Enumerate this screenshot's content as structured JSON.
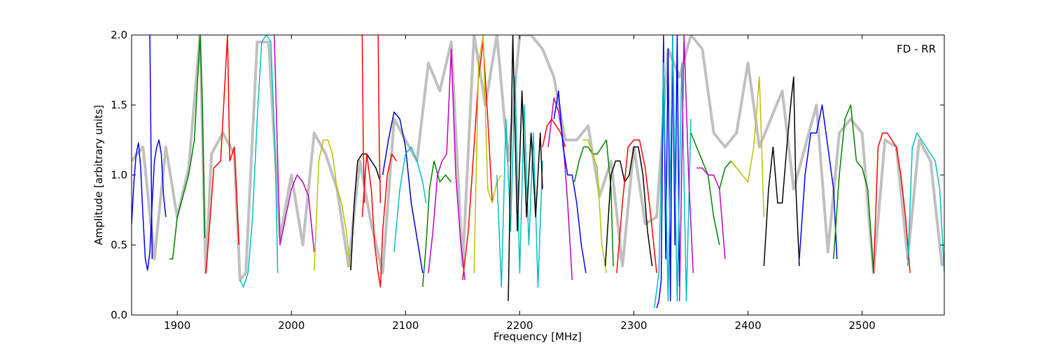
{
  "chart_data": {
    "type": "line",
    "title": "",
    "xlabel": "Frequency [MHz]",
    "ylabel": "Amplitude [arbitrary units]",
    "xlim": [
      1860,
      2572
    ],
    "ylim": [
      0.0,
      2.0
    ],
    "xticks": [
      1900,
      2000,
      2100,
      2200,
      2300,
      2400,
      2500
    ],
    "yticks": [
      0.0,
      0.5,
      1.0,
      1.5,
      2.0
    ],
    "xtick_labels": [
      "1900",
      "2000",
      "2100",
      "2200",
      "2300",
      "2400",
      "2500"
    ],
    "ytick_labels": [
      "0.0",
      "0.5",
      "1.0",
      "1.5",
      "2.0"
    ],
    "grid": false,
    "annotation": "FD - RR",
    "background_color": "#c0c0c0",
    "background_series": {
      "x": [
        1860,
        1870,
        1880,
        1890,
        1900,
        1910,
        1920,
        1925,
        1930,
        1940,
        1950,
        1955,
        1960,
        1970,
        1980,
        1990,
        2000,
        2010,
        2020,
        2030,
        2040,
        2050,
        2060,
        2070,
        2080,
        2090,
        2100,
        2110,
        2120,
        2130,
        2140,
        2150,
        2160,
        2170,
        2180,
        2190,
        2200,
        2210,
        2220,
        2230,
        2240,
        2250,
        2260,
        2270,
        2280,
        2290,
        2300,
        2310,
        2320,
        2330,
        2340,
        2350,
        2360,
        2370,
        2380,
        2390,
        2400,
        2410,
        2420,
        2430,
        2440,
        2450,
        2460,
        2470,
        2480,
        2490,
        2500,
        2510,
        2520,
        2530,
        2540,
        2550,
        2560,
        2570
      ],
      "y": [
        1.1,
        1.2,
        0.4,
        1.2,
        0.7,
        1.05,
        2.0,
        0.3,
        1.15,
        1.3,
        1.15,
        0.25,
        0.3,
        1.95,
        1.95,
        0.55,
        1.0,
        0.5,
        1.3,
        1.15,
        0.9,
        0.35,
        1.1,
        0.65,
        0.3,
        1.4,
        1.25,
        1.1,
        1.8,
        1.6,
        1.95,
        0.35,
        2.0,
        1.5,
        2.0,
        1.1,
        2.0,
        2.0,
        1.9,
        1.7,
        1.25,
        1.25,
        1.35,
        0.85,
        1.1,
        0.35,
        1.2,
        0.65,
        0.7,
        1.9,
        1.7,
        2.0,
        1.9,
        1.3,
        1.2,
        1.3,
        1.8,
        1.2,
        1.4,
        1.6,
        0.9,
        1.2,
        1.5,
        0.45,
        1.3,
        1.4,
        1.3,
        0.3,
        1.25,
        1.2,
        0.4,
        1.25,
        1.1,
        0.35
      ]
    },
    "series": [
      {
        "color": "#0000ff",
        "x": [
          1860,
          1862,
          1864,
          1866,
          1868,
          1870,
          1872,
          1874,
          1876,
          1878,
          1880,
          1882,
          1884,
          1886,
          1888,
          1890
        ],
        "y": [
          0.65,
          0.95,
          1.15,
          1.23,
          1.05,
          0.7,
          0.4,
          0.32,
          0.45,
          0.8,
          1.1,
          1.2,
          1.25,
          1.15,
          0.85,
          0.7
        ]
      },
      {
        "color": "#0000ff",
        "x": [
          1876,
          1877,
          1878
        ],
        "y": [
          2.0,
          1.2,
          0.4
        ]
      },
      {
        "color": "#008000",
        "x": [
          1893,
          1896,
          1900,
          1905,
          1910,
          1915,
          1920,
          1922,
          1924
        ],
        "y": [
          0.4,
          0.4,
          0.7,
          0.85,
          1.0,
          1.25,
          2.0,
          1.5,
          0.55
        ]
      },
      {
        "color": "#ff0000",
        "x": [
          1925,
          1928,
          1932,
          1938,
          1944,
          1946,
          1950,
          1954
        ],
        "y": [
          0.3,
          0.6,
          1.05,
          1.1,
          2.0,
          1.1,
          1.2,
          0.5
        ]
      },
      {
        "color": "#00bfbf",
        "x": [
          1955,
          1958,
          1962,
          1966,
          1970,
          1974,
          1978,
          1982,
          1986,
          1988
        ],
        "y": [
          0.25,
          0.2,
          0.3,
          0.7,
          1.4,
          1.95,
          2.0,
          1.95,
          1.1,
          0.3
        ]
      },
      {
        "color": "#bf00bf",
        "x": [
          1985,
          1990,
          1995,
          2000,
          2005,
          2010,
          2015,
          2020
        ],
        "y": [
          2.0,
          0.5,
          0.7,
          0.9,
          1.0,
          0.95,
          0.85,
          0.45
        ]
      },
      {
        "color": "#bfbf00",
        "x": [
          2020,
          2024,
          2028,
          2032,
          2036,
          2040,
          2044,
          2048,
          2052
        ],
        "y": [
          0.32,
          1.1,
          1.25,
          1.25,
          1.15,
          0.9,
          0.8,
          0.6,
          0.32
        ]
      },
      {
        "color": "#000000",
        "x": [
          2052,
          2055,
          2058,
          2062,
          2066,
          2070,
          2074,
          2078
        ],
        "y": [
          0.32,
          0.8,
          1.1,
          1.15,
          1.15,
          1.1,
          1.05,
          0.95
        ]
      },
      {
        "color": "#ff0000",
        "x": [
          2062,
          2066,
          2070,
          2073,
          2076,
          2078,
          2080,
          2084,
          2088,
          2092
        ],
        "y": [
          0.7,
          1.15,
          0.9,
          0.5,
          0.3,
          0.2,
          0.6,
          1.0,
          1.15,
          1.1
        ]
      },
      {
        "color": "#ff0000",
        "x": [
          2062,
          2063,
          2064
        ],
        "y": [
          2.0,
          1.2,
          0.8
        ]
      },
      {
        "color": "#ff0000",
        "x": [
          2076,
          2077,
          2078
        ],
        "y": [
          2.0,
          1.2,
          0.8
        ]
      },
      {
        "color": "#0000cc",
        "x": [
          2080,
          2085,
          2090,
          2095,
          2100,
          2105,
          2110,
          2115
        ],
        "y": [
          1.0,
          1.25,
          1.45,
          1.4,
          1.2,
          0.8,
          0.55,
          0.3
        ]
      },
      {
        "color": "#00bfbf",
        "x": [
          2090,
          2095,
          2100,
          2105,
          2110,
          2115,
          2118
        ],
        "y": [
          0.45,
          0.9,
          1.15,
          1.2,
          1.1,
          0.95,
          0.8
        ]
      },
      {
        "color": "#008000",
        "x": [
          2115,
          2118,
          2121,
          2125,
          2130,
          2135,
          2140
        ],
        "y": [
          0.2,
          0.5,
          0.9,
          1.1,
          0.95,
          1.0,
          0.95
        ]
      },
      {
        "color": "#bf00bf",
        "x": [
          2120,
          2124,
          2128,
          2132,
          2136,
          2140,
          2144,
          2148,
          2152
        ],
        "y": [
          0.3,
          0.6,
          1.0,
          1.1,
          1.15,
          1.9,
          1.0,
          0.55,
          0.25
        ]
      },
      {
        "color": "#ff0000",
        "x": [
          2150,
          2155,
          2160,
          2164,
          2168,
          2172,
          2176
        ],
        "y": [
          0.25,
          0.6,
          1.2,
          1.7,
          1.95,
          1.4,
          0.8
        ]
      },
      {
        "color": "#bfbf00",
        "x": [
          2160,
          2164,
          2168,
          2172,
          2176,
          2180,
          2184
        ],
        "y": [
          0.3,
          1.8,
          2.0,
          0.9,
          0.8,
          0.95,
          1.0
        ]
      },
      {
        "color": "#00bfbf",
        "x": [
          2180,
          2184,
          2188,
          2192,
          2196,
          2200,
          2204,
          2208,
          2212,
          2216,
          2220
        ],
        "y": [
          1.0,
          0.2,
          1.4,
          0.6,
          1.7,
          0.3,
          1.5,
          0.5,
          1.3,
          0.2,
          1.1
        ]
      },
      {
        "color": "#000000",
        "x": [
          2190,
          2194,
          2198,
          2202,
          2206,
          2210,
          2214,
          2218,
          2220
        ],
        "y": [
          0.1,
          2.0,
          0.6,
          1.6,
          0.7,
          1.3,
          0.7,
          1.3,
          0.9
        ]
      },
      {
        "color": "#ff0000",
        "x": [
          2220,
          2224,
          2228,
          2232,
          2236,
          2240
        ],
        "y": [
          1.2,
          1.35,
          1.4,
          1.35,
          1.3,
          1.2
        ]
      },
      {
        "color": "#bf00bf",
        "x": [
          2225,
          2230,
          2234,
          2238,
          2242,
          2246
        ],
        "y": [
          1.2,
          1.55,
          1.45,
          1.25,
          0.8,
          0.25
        ]
      },
      {
        "color": "#0000ff",
        "x": [
          2230,
          2234,
          2238,
          2242,
          2246,
          2250,
          2254,
          2258
        ],
        "y": [
          1.4,
          1.6,
          1.2,
          1.0,
          1.0,
          0.8,
          0.5,
          0.3
        ]
      },
      {
        "color": "#008000",
        "x": [
          2248,
          2252,
          2256,
          2260,
          2264,
          2268,
          2272,
          2276,
          2280,
          2282
        ],
        "y": [
          0.95,
          1.1,
          1.2,
          1.2,
          1.15,
          1.15,
          1.2,
          1.25,
          0.9,
          0.35
        ]
      },
      {
        "color": "#bfbf00",
        "x": [
          2255,
          2260,
          2264,
          2268,
          2272,
          2276
        ],
        "y": [
          1.25,
          1.25,
          1.15,
          1.05,
          0.5,
          0.3
        ]
      },
      {
        "color": "#000000",
        "x": [
          2275,
          2280,
          2284,
          2288,
          2292,
          2296,
          2300,
          2304,
          2308,
          2312,
          2316
        ],
        "y": [
          0.35,
          1.0,
          1.1,
          1.1,
          0.95,
          1.0,
          1.2,
          1.2,
          1.0,
          0.6,
          0.35
        ]
      },
      {
        "color": "#ff0000",
        "x": [
          2285,
          2290,
          2295,
          2300,
          2305,
          2310,
          2315,
          2320
        ],
        "y": [
          0.3,
          0.8,
          1.2,
          1.25,
          1.25,
          1.05,
          0.7,
          0.3
        ]
      },
      {
        "color": "#0000ff",
        "x": [
          2320,
          2322,
          2324,
          2326,
          2328,
          2330,
          2332,
          2334,
          2336,
          2338,
          2340
        ],
        "y": [
          0.05,
          0.1,
          0.25,
          2.0,
          0.4,
          1.9,
          0.1,
          2.0,
          0.5,
          2.0,
          0.2
        ]
      },
      {
        "color": "#00bfbf",
        "x": [
          2318,
          2322,
          2326,
          2330,
          2334,
          2338,
          2342,
          2346,
          2350
        ],
        "y": [
          0.05,
          0.3,
          1.8,
          0.1,
          2.0,
          0.1,
          1.8,
          0.1,
          1.4
        ]
      },
      {
        "color": "#bf00bf",
        "x": [
          2340,
          2344,
          2348,
          2352
        ],
        "y": [
          0.1,
          2.0,
          1.0,
          0.3
        ]
      },
      {
        "color": "#008000",
        "x": [
          2350,
          2355,
          2360,
          2365,
          2370,
          2375
        ],
        "y": [
          1.3,
          1.2,
          1.1,
          1.0,
          0.7,
          0.5
        ]
      },
      {
        "color": "#bf00bf",
        "x": [
          2355,
          2360,
          2365,
          2370,
          2375,
          2380
        ],
        "y": [
          1.05,
          1.05,
          1.0,
          1.0,
          0.9,
          0.4
        ]
      },
      {
        "color": "#008000",
        "x": [
          2375,
          2380,
          2385,
          2390
        ],
        "y": [
          0.9,
          1.05,
          1.1,
          1.05
        ]
      },
      {
        "color": "#bfbf00",
        "x": [
          2385,
          2390,
          2395,
          2400,
          2405,
          2410,
          2414
        ],
        "y": [
          1.1,
          1.05,
          1.0,
          0.95,
          1.2,
          1.7,
          0.7
        ]
      },
      {
        "color": "#000000",
        "x": [
          2414,
          2418,
          2422,
          2426,
          2430,
          2434,
          2438,
          2440,
          2442,
          2445
        ],
        "y": [
          0.35,
          0.9,
          1.2,
          0.8,
          0.8,
          1.2,
          1.55,
          1.7,
          0.9,
          0.35
        ]
      },
      {
        "color": "#0000ff",
        "x": [
          2445,
          2450,
          2455,
          2460,
          2465,
          2470,
          2475,
          2478
        ],
        "y": [
          0.4,
          1.0,
          1.3,
          1.3,
          1.5,
          1.2,
          0.9,
          0.4
        ]
      },
      {
        "color": "#008000",
        "x": [
          2475,
          2480,
          2485,
          2490,
          2495,
          2500,
          2505,
          2510
        ],
        "y": [
          0.4,
          1.0,
          1.4,
          1.5,
          1.1,
          1.05,
          0.9,
          0.3
        ]
      },
      {
        "color": "#ff0000",
        "x": [
          2510,
          2514,
          2518,
          2522,
          2526,
          2530,
          2534,
          2538,
          2542
        ],
        "y": [
          0.3,
          1.2,
          1.3,
          1.3,
          1.25,
          1.2,
          1.0,
          0.7,
          0.3
        ]
      },
      {
        "color": "#00bfbf",
        "x": [
          2540,
          2544,
          2548,
          2552,
          2556,
          2560,
          2564,
          2568,
          2572
        ],
        "y": [
          0.35,
          1.2,
          1.3,
          1.25,
          1.2,
          1.15,
          1.1,
          0.9,
          0.3
        ]
      }
    ]
  }
}
